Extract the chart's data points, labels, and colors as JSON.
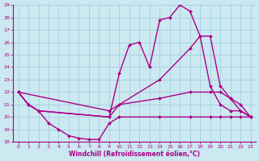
{
  "xlabel": "Windchill (Refroidissement éolien,°C)",
  "bg_color": "#cce8f0",
  "line_color": "#aa0088",
  "grid_color": "#99ccdd",
  "xlim": [
    -0.5,
    23.5
  ],
  "ylim": [
    18,
    29
  ],
  "xticks": [
    0,
    1,
    2,
    3,
    4,
    5,
    6,
    7,
    8,
    9,
    10,
    11,
    12,
    13,
    14,
    15,
    16,
    17,
    18,
    19,
    20,
    21,
    22,
    23
  ],
  "yticks": [
    18,
    19,
    20,
    21,
    22,
    23,
    24,
    25,
    26,
    27,
    28,
    29
  ],
  "lines": [
    {
      "x": [
        0,
        1,
        2,
        9,
        10,
        11,
        12,
        13,
        14,
        15,
        16,
        17,
        18,
        19,
        20,
        21,
        22,
        23
      ],
      "y": [
        22,
        21,
        20.5,
        20,
        23.5,
        25.8,
        26,
        24,
        27.8,
        28,
        29,
        28.5,
        26.5,
        22.5,
        21,
        20.5,
        20.5,
        20
      ],
      "marker": "D",
      "markersize": 2.0,
      "linewidth": 1.0,
      "has_markers_at": [
        0,
        1,
        2,
        9,
        10,
        11,
        12,
        13,
        14,
        15,
        16,
        17,
        18,
        19,
        20,
        21,
        22,
        23
      ]
    },
    {
      "x": [
        0,
        9,
        14,
        17,
        18,
        19,
        20,
        21,
        22,
        23
      ],
      "y": [
        22,
        20.5,
        23,
        25.5,
        26.5,
        26.5,
        22.5,
        21.5,
        20.5,
        20
      ],
      "marker": "D",
      "markersize": 2.0,
      "linewidth": 1.0,
      "has_markers_at": [
        0,
        9,
        14,
        17,
        18,
        19,
        20,
        21,
        22,
        23
      ]
    },
    {
      "x": [
        0,
        1,
        2,
        9,
        10,
        14,
        17,
        19,
        20,
        21,
        22,
        23
      ],
      "y": [
        22,
        21,
        20.5,
        20,
        21,
        21.5,
        22,
        22,
        22,
        21.5,
        21,
        20
      ],
      "marker": "D",
      "markersize": 2.0,
      "linewidth": 1.0,
      "has_markers_at": [
        0,
        1,
        2,
        9,
        10,
        14,
        17,
        19,
        20,
        21,
        22,
        23
      ]
    },
    {
      "x": [
        0,
        1,
        2,
        3,
        4,
        5,
        6,
        7,
        8,
        9,
        10,
        14,
        17,
        19,
        20,
        21,
        22,
        23
      ],
      "y": [
        22,
        21,
        20.5,
        19.5,
        19,
        18.5,
        18.3,
        18.2,
        18.2,
        19.5,
        20,
        20,
        20,
        20,
        20,
        20,
        20,
        20
      ],
      "marker": "D",
      "markersize": 2.0,
      "linewidth": 1.0,
      "has_markers_at": [
        0,
        1,
        2,
        3,
        4,
        5,
        6,
        7,
        8,
        9,
        10,
        14,
        17,
        19,
        20,
        21,
        22,
        23
      ]
    }
  ]
}
